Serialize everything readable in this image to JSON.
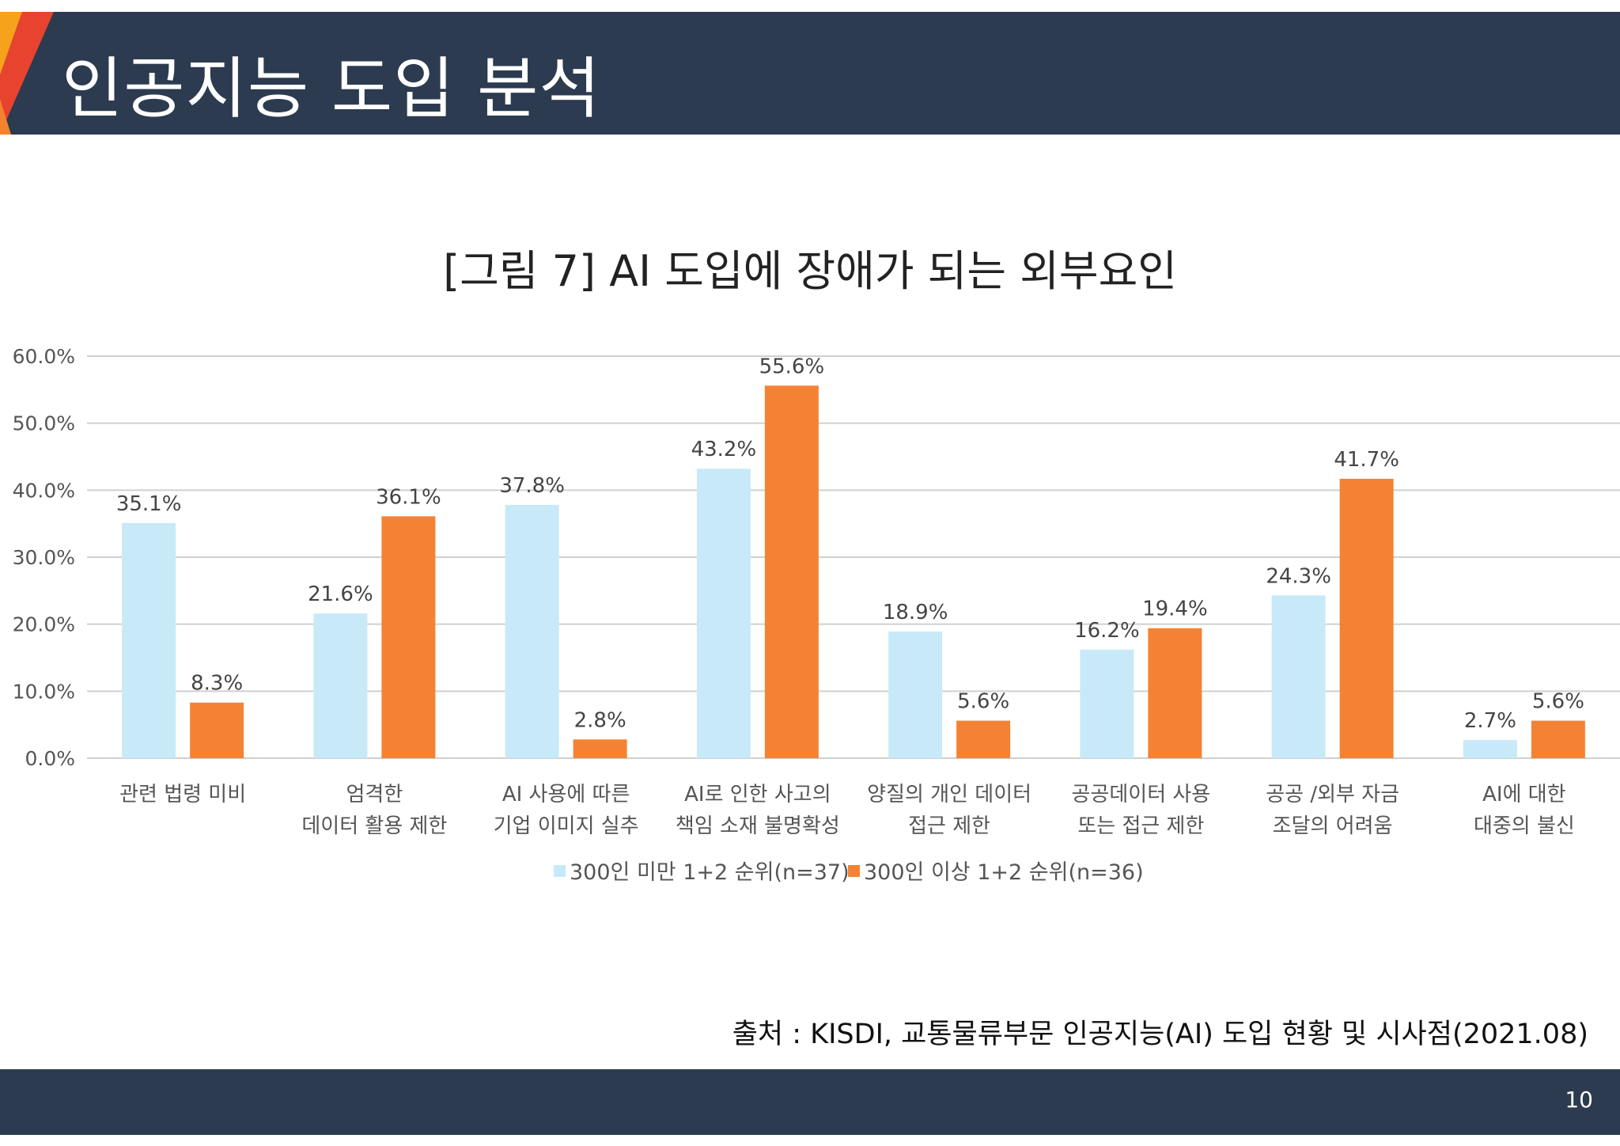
{
  "header": {
    "title": "인공지능 도입 분석"
  },
  "colors": {
    "header_bg": "#2c3b4f",
    "accent_orange": "#f5822e",
    "accent_red": "#e8432f",
    "series_small": "#c8e9f7",
    "series_large": "#f58233"
  },
  "chart_data": {
    "type": "bar",
    "title": "[그림 7] AI 도입에 장애가 되는 외부요인",
    "categories": [
      [
        "관련 법령 미비"
      ],
      [
        "엄격한",
        "데이터 활용 제한"
      ],
      [
        "AI 사용에 따른",
        "기업 이미지 실추"
      ],
      [
        "AI로 인한 사고의",
        "책임 소재 불명확성"
      ],
      [
        "양질의 개인 데이터",
        "접근 제한"
      ],
      [
        "공공데이터 사용",
        "또는 접근 제한"
      ],
      [
        "공공 /외부 자금",
        "조달의 어려움"
      ],
      [
        "AI에 대한",
        "대중의 불신"
      ]
    ],
    "series": [
      {
        "name": "300인 미만 1+2 순위(n=37)",
        "values": [
          35.1,
          21.6,
          37.8,
          43.2,
          18.9,
          16.2,
          24.3,
          2.7
        ]
      },
      {
        "name": "300인 이상 1+2 순위(n=36)",
        "values": [
          8.3,
          36.1,
          2.8,
          55.6,
          5.6,
          19.4,
          41.7,
          5.6
        ]
      }
    ],
    "value_labels": [
      [
        "35.1%",
        "21.6%",
        "37.8%",
        "43.2%",
        "18.9%",
        "16.2%",
        "24.3%",
        "2.7%"
      ],
      [
        "8.3%",
        "36.1%",
        "2.8%",
        "55.6%",
        "5.6%",
        "19.4%",
        "41.7%",
        "5.6%"
      ]
    ],
    "yticks": [
      "0.0%",
      "10.0%",
      "20.0%",
      "30.0%",
      "40.0%",
      "50.0%",
      "60.0%"
    ],
    "ylim": [
      0,
      60
    ],
    "grid": true,
    "legend": "bottom-center"
  },
  "source": "출처 : KISDI, 교통물류부문 인공지능(AI) 도입 현황 및 시사점(2021.08)",
  "page_number": "10"
}
